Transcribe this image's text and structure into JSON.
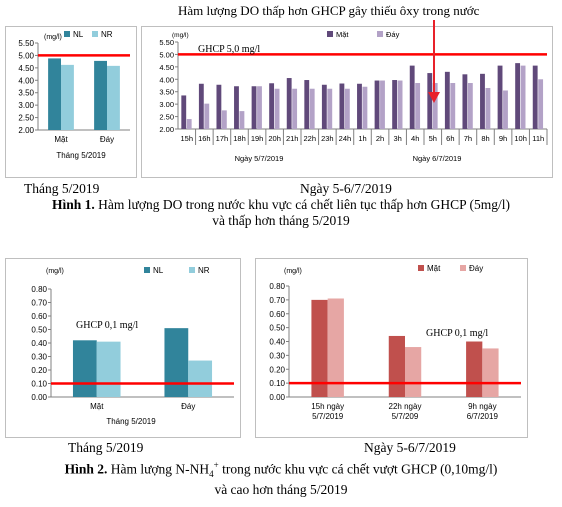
{
  "annotation": "Hàm lượng DO thấp hơn GHCP gây thiếu ôxy trong nước",
  "figure1": {
    "caption_bold": "Hình 1.",
    "caption_line1": " Hàm lượng DO trong nước khu vực cá chết liên tục thấp hơn GHCP (5mg/l)",
    "caption_line2": "và thấp hơn tháng 5/2019",
    "left_label": "Tháng 5/2019",
    "right_label": "Ngày 5-6/7/2019"
  },
  "figure2": {
    "caption_bold": "Hình 2.",
    "caption_line1": " Hàm lượng N-NH",
    "caption_sub": "4",
    "caption_sup": "+",
    "caption_line1b": " trong nước khu vực cá chết vượt GHCP (0,10mg/l)",
    "caption_line2": "và cao hơn tháng 5/2019",
    "left_label": "Tháng 5/2019",
    "right_label": "Ngày 5-6/7/2019"
  },
  "colors": {
    "nl": "#31849b",
    "nr": "#92cddc",
    "mat": "#60497a",
    "day": "#b3a2c7",
    "mat2": "#c0504d",
    "day2": "#e6a6a4",
    "limit": "#ff0000",
    "arrow": "#e8212a"
  },
  "chart_data": [
    {
      "type": "bar",
      "unit": "(mg/l)",
      "categories": [
        "Mặt",
        "Đáy"
      ],
      "series": [
        {
          "name": "NL",
          "values": [
            4.88,
            4.78
          ]
        },
        {
          "name": "NR",
          "values": [
            4.62,
            4.58
          ]
        }
      ],
      "ylim": [
        2.0,
        5.5
      ],
      "yticks": [
        "2.00",
        "2.50",
        "3.00",
        "3.50",
        "4.00",
        "4.50",
        "5.00",
        "5.50"
      ],
      "limit_value": 5.0,
      "xlabel": "Tháng 5/2019"
    },
    {
      "type": "bar",
      "unit": "(mg/l)",
      "categories": [
        "15h",
        "16h",
        "17h",
        "18h",
        "19h",
        "20h",
        "21h",
        "22h",
        "23h",
        "24h",
        "1h",
        "2h",
        "3h",
        "4h",
        "5h",
        "6h",
        "7h",
        "8h",
        "9h",
        "10h",
        "11h"
      ],
      "series": [
        {
          "name": "Mặt",
          "values": [
            3.35,
            3.82,
            3.78,
            3.72,
            3.72,
            3.84,
            4.05,
            3.97,
            3.78,
            3.83,
            3.82,
            3.95,
            3.97,
            4.55,
            4.25,
            4.3,
            4.2,
            4.22,
            4.55,
            4.65,
            4.55
          ]
        },
        {
          "name": "Đáy",
          "values": [
            2.4,
            3.02,
            2.75,
            2.72,
            3.72,
            3.62,
            3.62,
            3.62,
            3.62,
            3.62,
            3.7,
            3.95,
            3.95,
            3.85,
            3.85,
            3.85,
            3.85,
            3.65,
            3.55,
            4.55,
            4.0
          ]
        }
      ],
      "ylim": [
        2.0,
        5.5
      ],
      "yticks": [
        "2.00",
        "2.50",
        "3.00",
        "3.50",
        "4.00",
        "4.50",
        "5.00",
        "5.50"
      ],
      "limit_value": 5.0,
      "limit_label": "GHCP 5,0 mg/l",
      "groups": [
        "Ngày 5/7/2019",
        "Ngày 6/7/2019"
      ]
    },
    {
      "type": "bar",
      "unit": "(mg/l)",
      "categories": [
        "Mặt",
        "Đáy"
      ],
      "series": [
        {
          "name": "NL",
          "values": [
            0.42,
            0.51
          ]
        },
        {
          "name": "NR",
          "values": [
            0.41,
            0.27
          ]
        }
      ],
      "ylim": [
        0.0,
        0.8
      ],
      "yticks": [
        "0.00",
        "0.10",
        "0.20",
        "0.30",
        "0.40",
        "0.50",
        "0.60",
        "0.70",
        "0.80"
      ],
      "limit_value": 0.1,
      "limit_label": "GHCP 0,1 mg/l",
      "xlabel": "Tháng 5/2019"
    },
    {
      "type": "bar",
      "unit": "(mg/l)",
      "categories": [
        [
          "15h ngày",
          "5/7/2019"
        ],
        [
          "22h ngày",
          "5/7/209"
        ],
        [
          "9h ngày",
          "6/7/2019"
        ]
      ],
      "series": [
        {
          "name": "Mặt",
          "values": [
            0.7,
            0.44,
            0.4
          ]
        },
        {
          "name": "Đáy",
          "values": [
            0.71,
            0.36,
            0.35
          ]
        }
      ],
      "ylim": [
        0.0,
        0.8
      ],
      "yticks": [
        "0.00",
        "0.10",
        "0.20",
        "0.30",
        "0.40",
        "0.50",
        "0.60",
        "0.70",
        "0.80"
      ],
      "limit_value": 0.1,
      "limit_label": "GHCP 0,1 mg/l"
    }
  ]
}
